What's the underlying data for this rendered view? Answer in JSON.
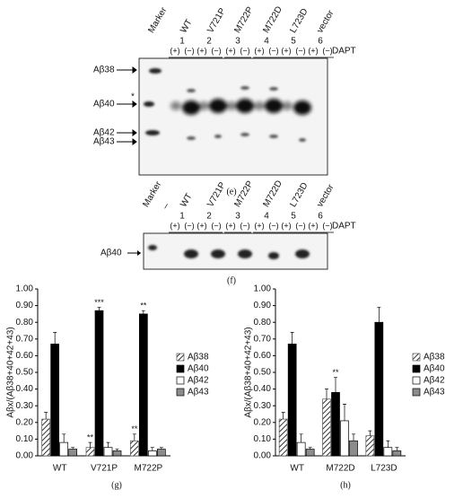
{
  "blot_e": {
    "caption": "(e)",
    "lanes": [
      "Marker",
      "WT",
      "V721P",
      "M722P",
      "M722D",
      "L723D",
      "vector"
    ],
    "numbers": [
      "1",
      "2",
      "3",
      "4",
      "5",
      "6"
    ],
    "treatments": [
      "(+)",
      "(−)"
    ],
    "reagent": "DAPT",
    "bands": [
      "Aβ38",
      "Aβ40",
      "Aβ42",
      "Aβ43"
    ],
    "asterisk": "*"
  },
  "blot_f": {
    "caption": "(f)",
    "lanes": [
      "Marker",
      "_",
      "WT",
      "V721P",
      "M722P",
      "M722D",
      "L723D",
      "vector"
    ],
    "numbers": [
      "1",
      "2",
      "3",
      "4",
      "5",
      "6"
    ],
    "treatments": [
      "(+)",
      "(−)"
    ],
    "reagent": "DAPT",
    "bands": [
      "Aβ40"
    ]
  },
  "chart_data": [
    {
      "type": "bar",
      "caption": "(g)",
      "y_label": "Aβx/(Aβ38+40+42+43)",
      "categories": [
        "WT",
        "V721P",
        "M722P"
      ],
      "ylim": [
        0,
        1.0
      ],
      "yticks": [
        {
          "value": 0,
          "label": "0.00"
        },
        {
          "value": 0.1,
          "label": "0.10"
        },
        {
          "value": 0.2,
          "label": "0.20"
        },
        {
          "value": 0.3,
          "label": "0.30"
        },
        {
          "value": 0.4,
          "label": "0.40"
        },
        {
          "value": 0.5,
          "label": "0.50"
        },
        {
          "value": 0.6,
          "label": "0.60"
        },
        {
          "value": 0.7,
          "label": "0.70"
        },
        {
          "value": 0.8,
          "label": "0.80"
        },
        {
          "value": 0.9,
          "label": "0.90"
        },
        {
          "value": 1.0,
          "label": "1.00"
        }
      ],
      "series": [
        {
          "name": "Aβ38",
          "color": "#555555",
          "hatch": true,
          "values": [
            0.22,
            0.05,
            0.09
          ],
          "errors": [
            0.04,
            0.03,
            0.04
          ],
          "significance": [
            null,
            "**",
            "**"
          ]
        },
        {
          "name": "Aβ40",
          "color": "#000000",
          "values": [
            0.67,
            0.87,
            0.85
          ],
          "errors": [
            0.07,
            0.02,
            0.02
          ],
          "significance": [
            null,
            "***",
            "**"
          ]
        },
        {
          "name": "Aβ42",
          "color": "#ffffff",
          "values": [
            0.08,
            0.05,
            0.03
          ],
          "errors": [
            0.05,
            0.03,
            0.02
          ],
          "significance": [
            null,
            null,
            null
          ]
        },
        {
          "name": "Aβ43",
          "color": "#8c8c8c",
          "values": [
            0.04,
            0.03,
            0.04
          ],
          "errors": [
            0.01,
            0.01,
            0.01
          ],
          "significance": [
            null,
            null,
            null
          ]
        }
      ]
    },
    {
      "type": "bar",
      "caption": "(h)",
      "y_label": "Aβx/(Aβ38+40+42+43)",
      "categories": [
        "WT",
        "M722D",
        "L723D"
      ],
      "ylim": [
        0,
        1.0
      ],
      "yticks": [
        {
          "value": 0,
          "label": "0.00"
        },
        {
          "value": 0.1,
          "label": "0.10"
        },
        {
          "value": 0.2,
          "label": "0.20"
        },
        {
          "value": 0.3,
          "label": "0.30"
        },
        {
          "value": 0.4,
          "label": "0.40"
        },
        {
          "value": 0.5,
          "label": "0.50"
        },
        {
          "value": 0.6,
          "label": "0.60"
        },
        {
          "value": 0.7,
          "label": "0.70"
        },
        {
          "value": 0.8,
          "label": "0.80"
        },
        {
          "value": 0.9,
          "label": "0.90"
        },
        {
          "value": 1.0,
          "label": "1.00"
        }
      ],
      "series": [
        {
          "name": "Aβ38",
          "color": "#555555",
          "hatch": true,
          "values": [
            0.22,
            0.34,
            0.12
          ],
          "errors": [
            0.04,
            0.06,
            0.03
          ],
          "significance": [
            null,
            null,
            null
          ]
        },
        {
          "name": "Aβ40",
          "color": "#000000",
          "values": [
            0.67,
            0.38,
            0.8
          ],
          "errors": [
            0.07,
            0.09,
            0.09
          ],
          "significance": [
            null,
            "**",
            null
          ]
        },
        {
          "name": "Aβ42",
          "color": "#ffffff",
          "values": [
            0.08,
            0.21,
            0.05
          ],
          "errors": [
            0.05,
            0.1,
            0.04
          ],
          "significance": [
            null,
            null,
            null
          ]
        },
        {
          "name": "Aβ43",
          "color": "#8c8c8c",
          "values": [
            0.04,
            0.09,
            0.03
          ],
          "errors": [
            0.01,
            0.04,
            0.02
          ],
          "significance": [
            null,
            null,
            null
          ]
        }
      ]
    }
  ]
}
